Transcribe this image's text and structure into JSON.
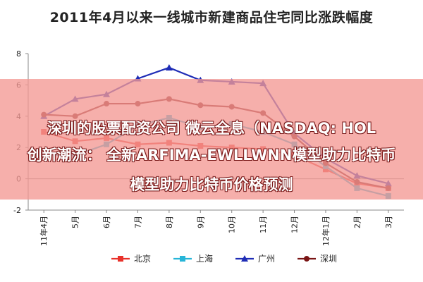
{
  "chart_data": {
    "type": "line",
    "title": "2011年4月以来一线城市新建商品住宅同比涨跌幅度",
    "xlabel": "",
    "ylabel": "",
    "ylim": [
      -2,
      8
    ],
    "yticks": [
      -2,
      0,
      2,
      4,
      6,
      8
    ],
    "x_tick_labels": [
      "11年4月",
      "5月",
      "6月",
      "7月",
      "8月",
      "9月",
      "10月",
      "11月",
      "12月",
      "12年1月",
      "2月",
      "3月"
    ],
    "categories": [
      "2011-04",
      "2011-05",
      "2011-06",
      "2011-07",
      "2011-08",
      "2011-09",
      "2011-10",
      "2011-11",
      "2011-12",
      "2012-01",
      "2012-02",
      "2012-03"
    ],
    "legend_position": "bottom",
    "series": [
      {
        "name": "北京",
        "color": "#e8322b",
        "marker": "square",
        "values": [
          3.0,
          2.4,
          2.6,
          2.2,
          2.3,
          2.1,
          2.0,
          1.9,
          1.5,
          0.6,
          -0.3,
          -0.6
        ]
      },
      {
        "name": "上海",
        "color": "#27b5d8",
        "marker": "square",
        "values": [
          1.5,
          1.5,
          2.2,
          3.4,
          3.9,
          3.3,
          3.5,
          3.0,
          2.2,
          0.8,
          -0.6,
          -1.1
        ]
      },
      {
        "name": "广州",
        "color": "#1f2db6",
        "marker": "triangle",
        "values": [
          4.0,
          5.1,
          5.4,
          6.4,
          7.1,
          6.3,
          6.2,
          6.1,
          2.9,
          1.3,
          0.2,
          -0.3
        ]
      },
      {
        "name": "深圳",
        "color": "#7a1515",
        "marker": "circle",
        "values": [
          4.1,
          4.0,
          4.8,
          4.8,
          5.1,
          4.7,
          4.6,
          4.2,
          2.7,
          1.0,
          -0.2,
          -0.6
        ]
      }
    ]
  },
  "overlay": {
    "line1": "深圳的股票配资公司 微云全息（NASDAQ: HOL",
    "line2": "创新潮流： 全新ARFIMA-EWLLWNN模型助力比特币",
    "line3": "模型助力比特币价格预测"
  },
  "colors": {
    "overlay_background": "#f49994",
    "axis": "#888888"
  }
}
